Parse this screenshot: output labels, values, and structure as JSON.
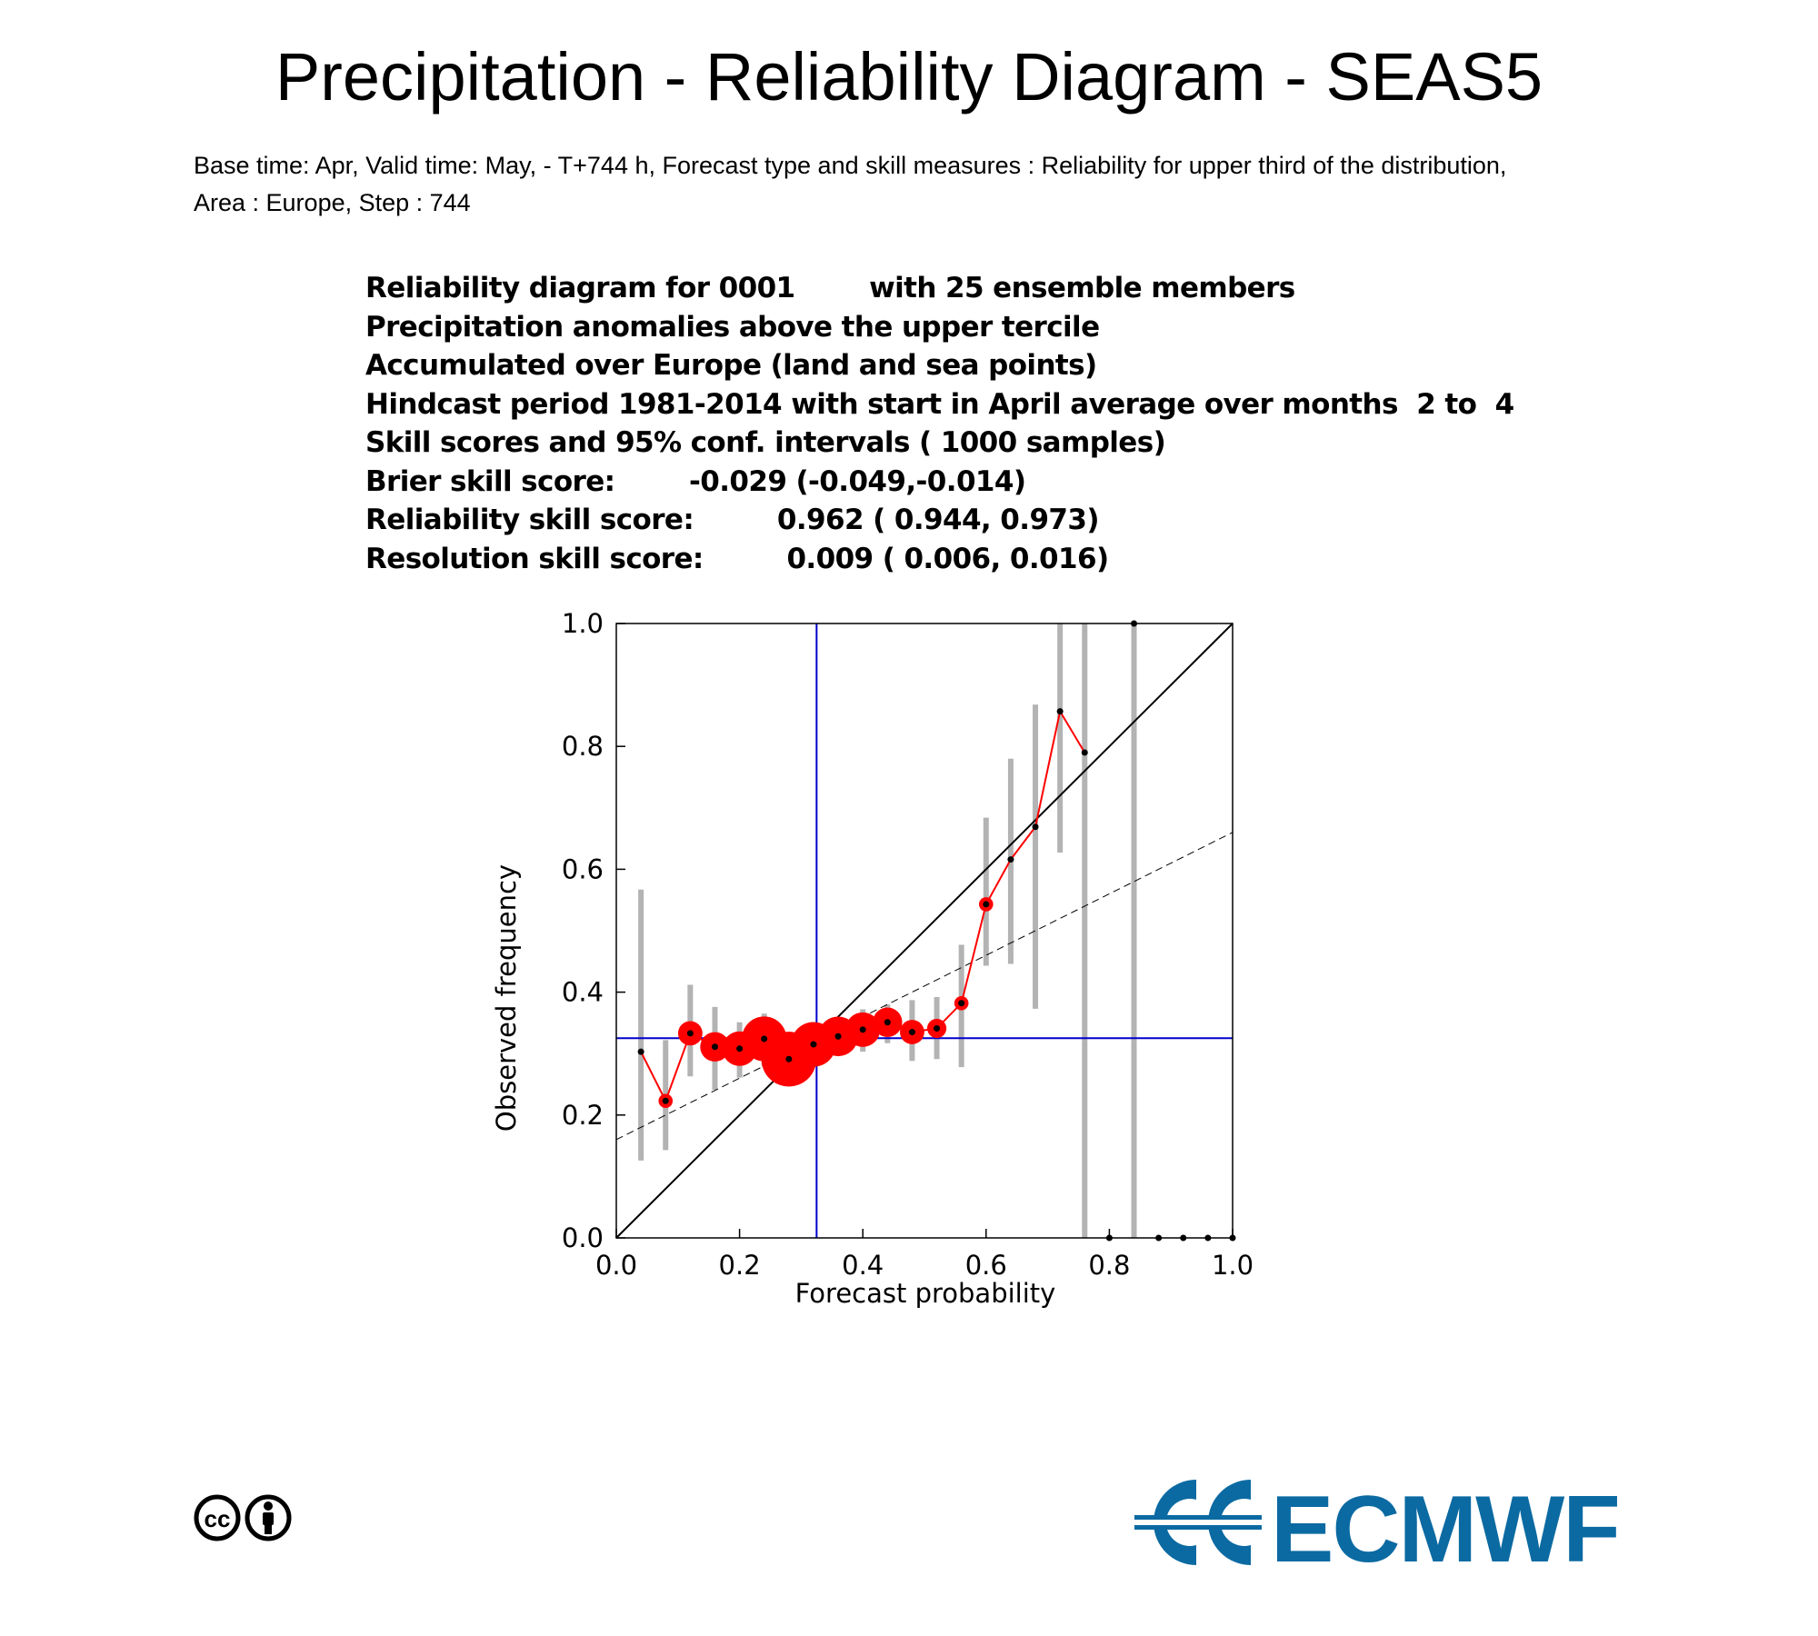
{
  "page": {
    "title": "Precipitation - Reliability Diagram - SEAS5",
    "subtitle_lines": [
      "Base time: Apr, Valid time: May, - T+744 h, Forecast type and skill measures : Reliability for upper third of the distribution,",
      "Area : Europe, Step : 744"
    ],
    "info_lines": [
      "Reliability diagram for 0001        with 25 ensemble members",
      "Precipitation anomalies above the upper tercile",
      "Accumulated over Europe (land and sea points)",
      "Hindcast period 1981-2014 with start in April average over months  2 to  4",
      "Skill scores and 95% conf. intervals ( 1000 samples)",
      "Brier skill score:        -0.029 (-0.049,-0.014)",
      "Reliability skill score:         0.962 ( 0.944, 0.973)",
      "Resolution skill score:         0.009 ( 0.006, 0.016)"
    ],
    "logo_text": "ECMWF",
    "license_icon": "cc-by-icon",
    "colors": {
      "ecmwf_blue": "#0b6aa2",
      "red_line": "#ff0000",
      "climatology_blue": "#0000cc",
      "ci_gray": "#b3b3b3"
    }
  },
  "chart_data": {
    "type": "scatter",
    "xlabel": "Forecast probability",
    "ylabel": "Observed frequency",
    "xlim": [
      0,
      1
    ],
    "ylim": [
      0,
      1
    ],
    "xticks": [
      "0.0",
      "0.2",
      "0.4",
      "0.6",
      "0.8",
      "1.0"
    ],
    "yticks": [
      "0.0",
      "0.2",
      "0.4",
      "0.6",
      "0.8",
      "1.0"
    ],
    "climatology": 0.325,
    "diagonal": [
      [
        0,
        0
      ],
      [
        1,
        1
      ]
    ],
    "regression_line": [
      [
        0,
        0.16
      ],
      [
        1,
        0.66
      ]
    ],
    "points": [
      {
        "x": 0.04,
        "y": 0.303,
        "lo": 0.126,
        "hi": 0.567,
        "size": 0
      },
      {
        "x": 0.08,
        "y": 0.223,
        "lo": 0.143,
        "hi": 0.322,
        "size": 1
      },
      {
        "x": 0.12,
        "y": 0.333,
        "lo": 0.263,
        "hi": 0.412,
        "size": 3
      },
      {
        "x": 0.16,
        "y": 0.311,
        "lo": 0.241,
        "hi": 0.376,
        "size": 4
      },
      {
        "x": 0.2,
        "y": 0.308,
        "lo": 0.261,
        "hi": 0.351,
        "size": 5
      },
      {
        "x": 0.24,
        "y": 0.324,
        "lo": 0.279,
        "hi": 0.365,
        "size": 7
      },
      {
        "x": 0.28,
        "y": 0.291,
        "lo": 0.262,
        "hi": 0.321,
        "size": 9
      },
      {
        "x": 0.32,
        "y": 0.315,
        "lo": 0.289,
        "hi": 0.344,
        "size": 7
      },
      {
        "x": 0.36,
        "y": 0.328,
        "lo": 0.303,
        "hi": 0.352,
        "size": 6
      },
      {
        "x": 0.4,
        "y": 0.339,
        "lo": 0.303,
        "hi": 0.372,
        "size": 5
      },
      {
        "x": 0.44,
        "y": 0.351,
        "lo": 0.317,
        "hi": 0.38,
        "size": 4
      },
      {
        "x": 0.48,
        "y": 0.335,
        "lo": 0.288,
        "hi": 0.387,
        "size": 3
      },
      {
        "x": 0.52,
        "y": 0.341,
        "lo": 0.291,
        "hi": 0.392,
        "size": 2
      },
      {
        "x": 0.56,
        "y": 0.382,
        "lo": 0.278,
        "hi": 0.477,
        "size": 1
      },
      {
        "x": 0.6,
        "y": 0.543,
        "lo": 0.443,
        "hi": 0.684,
        "size": 1
      },
      {
        "x": 0.64,
        "y": 0.616,
        "lo": 0.446,
        "hi": 0.78,
        "size": 0
      },
      {
        "x": 0.68,
        "y": 0.669,
        "lo": 0.373,
        "hi": 0.868,
        "size": 0
      },
      {
        "x": 0.72,
        "y": 0.857,
        "lo": 0.627,
        "hi": 1.0,
        "size": 0
      },
      {
        "x": 0.76,
        "y": 0.79,
        "lo": 0.0,
        "hi": 1.0,
        "size": 0
      },
      {
        "x": 0.8,
        "y": 0.0,
        "lo": null,
        "hi": null,
        "size": 0
      },
      {
        "x": 0.84,
        "y": 1.0,
        "lo": 0.0,
        "hi": 1.0,
        "size": 0
      },
      {
        "x": 0.88,
        "y": 0.0,
        "lo": null,
        "hi": null,
        "size": 0
      },
      {
        "x": 0.92,
        "y": 0.0,
        "lo": null,
        "hi": null,
        "size": 0
      },
      {
        "x": 0.96,
        "y": 0.0,
        "lo": null,
        "hi": null,
        "size": 0
      },
      {
        "x": 1.0,
        "y": 0.0,
        "lo": null,
        "hi": null,
        "size": 0
      }
    ],
    "red_line_through_x": [
      0.04,
      0.76
    ]
  }
}
